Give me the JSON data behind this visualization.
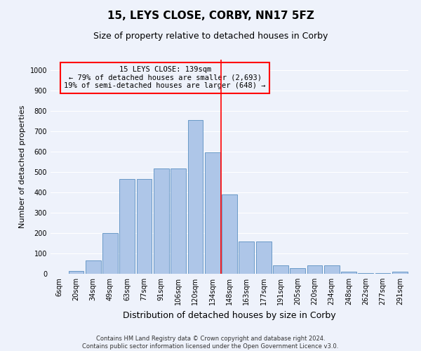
{
  "title": "15, LEYS CLOSE, CORBY, NN17 5FZ",
  "subtitle": "Size of property relative to detached houses in Corby",
  "xlabel": "Distribution of detached houses by size in Corby",
  "ylabel": "Number of detached properties",
  "categories": [
    "6sqm",
    "20sqm",
    "34sqm",
    "49sqm",
    "63sqm",
    "77sqm",
    "91sqm",
    "106sqm",
    "120sqm",
    "134sqm",
    "148sqm",
    "163sqm",
    "177sqm",
    "191sqm",
    "205sqm",
    "220sqm",
    "234sqm",
    "248sqm",
    "262sqm",
    "277sqm",
    "291sqm"
  ],
  "values": [
    0,
    15,
    65,
    200,
    465,
    465,
    515,
    515,
    755,
    595,
    390,
    160,
    160,
    42,
    27,
    42,
    42,
    12,
    5,
    5,
    10
  ],
  "bar_color": "#aec6e8",
  "bar_edge_color": "#5a8fc0",
  "vline_x": 9.5,
  "vline_color": "red",
  "annotation_title": "15 LEYS CLOSE: 139sqm",
  "annotation_line1": "← 79% of detached houses are smaller (2,693)",
  "annotation_line2": "19% of semi-detached houses are larger (648) →",
  "annotation_box_color": "red",
  "footer_line1": "Contains HM Land Registry data © Crown copyright and database right 2024.",
  "footer_line2": "Contains public sector information licensed under the Open Government Licence v3.0.",
  "ylim": [
    0,
    1050
  ],
  "yticks": [
    0,
    100,
    200,
    300,
    400,
    500,
    600,
    700,
    800,
    900,
    1000
  ],
  "bg_color": "#eef2fb",
  "grid_color": "#ffffff",
  "title_fontsize": 11,
  "subtitle_fontsize": 9,
  "xlabel_fontsize": 9,
  "ylabel_fontsize": 8,
  "tick_fontsize": 7,
  "annotation_fontsize": 7.5,
  "footer_fontsize": 6
}
